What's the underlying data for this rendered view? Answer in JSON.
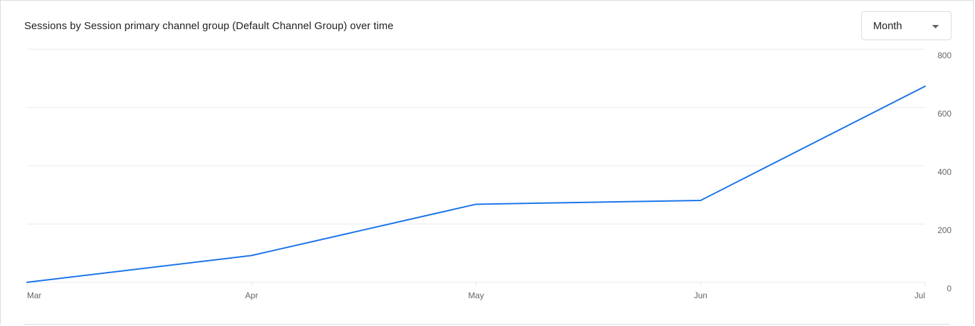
{
  "card": {
    "title": "Sessions by Session primary channel group (Default Channel Group) over time",
    "granularity": {
      "selected": "Month",
      "icon": "chevron-down-icon"
    }
  },
  "colors": {
    "series": "#1a73e8",
    "grid": "#e8eaed",
    "axis_text": "#5f6368"
  },
  "chart_data": {
    "type": "line",
    "title": "Sessions by Session primary channel group (Default Channel Group) over time",
    "xlabel": "",
    "ylabel": "",
    "categories": [
      "Mar",
      "Apr",
      "May",
      "Jun",
      "Jul"
    ],
    "series": [
      {
        "values": [
          0,
          92,
          268,
          281,
          673
        ]
      }
    ],
    "ylim": [
      0,
      800
    ],
    "yticks": [
      "0",
      "200",
      "400",
      "600",
      "800"
    ],
    "y_axis_side": "right",
    "grid": true,
    "legend": "none"
  }
}
